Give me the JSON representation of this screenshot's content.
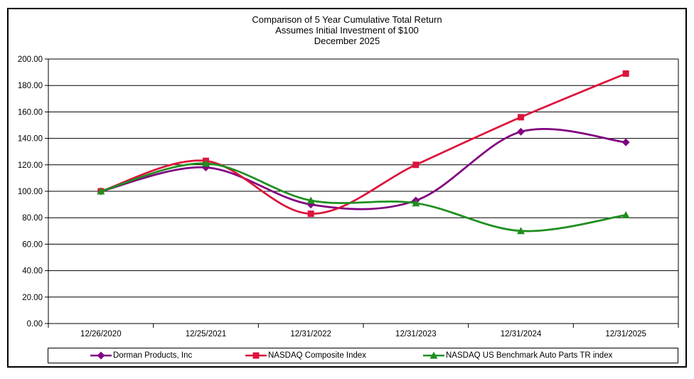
{
  "title": {
    "line1": "Comparison of 5 Year Cumulative Total Return",
    "line2": "Assumes Initial Investment of $100",
    "line3": "December 2025"
  },
  "chart_data": {
    "type": "line",
    "smooth": true,
    "grid": "horizontal",
    "legend_position": "bottom",
    "categories": [
      "12/26/2020",
      "12/25/2021",
      "12/31/2022",
      "12/31/2023",
      "12/31/2024",
      "12/31/2025"
    ],
    "series": [
      {
        "name": "Dorman Products, Inc",
        "color": "#800080",
        "marker": "diamond",
        "values": [
          100,
          118,
          90,
          93,
          145,
          137
        ]
      },
      {
        "name": "NASDAQ Composite Index",
        "color": "#DC143C",
        "marker": "square",
        "values": [
          100,
          123,
          83,
          120,
          156,
          189
        ]
      },
      {
        "name": "NASDAQ US Benchmark Auto Parts TR index",
        "color": "#1E8F1E",
        "marker": "triangle",
        "values": [
          100,
          121,
          93,
          91,
          70,
          82
        ]
      }
    ],
    "ylim": [
      0,
      200
    ],
    "ytick_step": 20,
    "y_tick_labels": [
      "200.00",
      "180.00",
      "160.00",
      "140.00",
      "120.00",
      "100.00",
      "80.00",
      "60.00",
      "40.00",
      "20.00",
      "0.00"
    ],
    "axis_color": "#000000",
    "gridline_color": "#000000"
  }
}
